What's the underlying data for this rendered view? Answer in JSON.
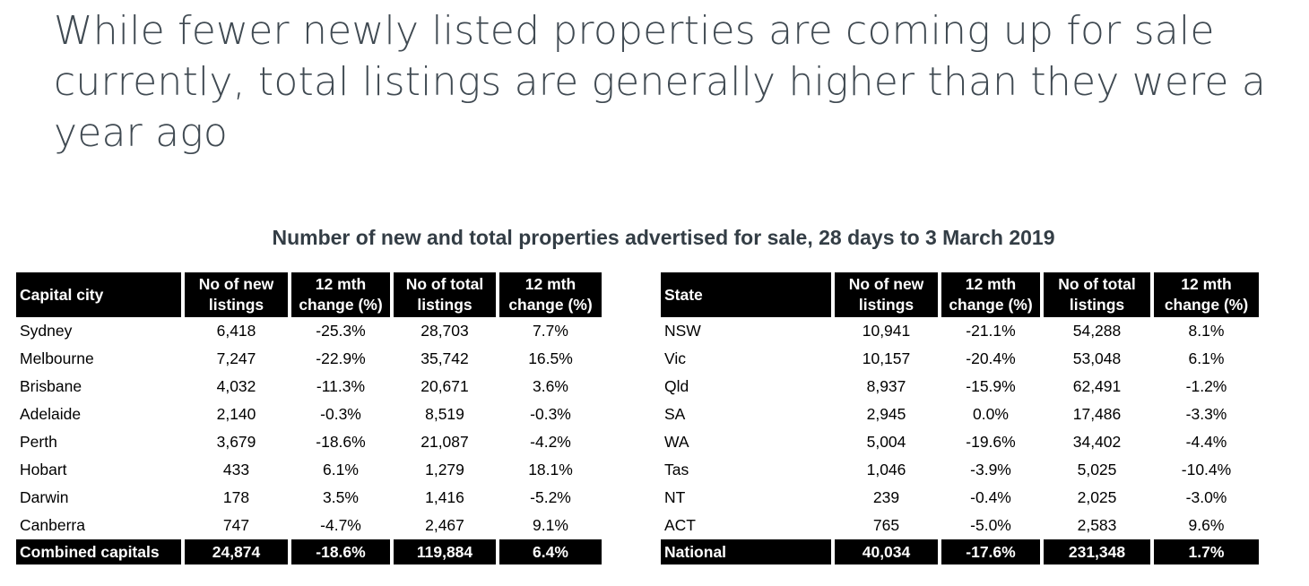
{
  "title": "While fewer newly listed properties are coming up for sale currently, total listings are generally higher than they were a year ago",
  "subtitle": "Number of new and total properties advertised for sale, 28 days to 3 March 2019",
  "columns_shared": {
    "new_l1": "No of new",
    "new_l2": "listings",
    "chg_l1": "12 mth",
    "chg_l2": "change (%)",
    "tot_l1": "No of total",
    "tot_l2": "listings"
  },
  "capitals": {
    "header": "Capital city",
    "rows": [
      [
        "Sydney",
        "6,418",
        "-25.3%",
        "28,703",
        "7.7%"
      ],
      [
        "Melbourne",
        "7,247",
        "-22.9%",
        "35,742",
        "16.5%"
      ],
      [
        "Brisbane",
        "4,032",
        "-11.3%",
        "20,671",
        "3.6%"
      ],
      [
        "Adelaide",
        "2,140",
        "-0.3%",
        "8,519",
        "-0.3%"
      ],
      [
        "Perth",
        "3,679",
        "-18.6%",
        "21,087",
        "-4.2%"
      ],
      [
        "Hobart",
        "433",
        "6.1%",
        "1,279",
        "18.1%"
      ],
      [
        "Darwin",
        "178",
        "3.5%",
        "1,416",
        "-5.2%"
      ],
      [
        "Canberra",
        "747",
        "-4.7%",
        "2,467",
        "9.1%"
      ]
    ],
    "total": [
      "Combined capitals",
      "24,874",
      "-18.6%",
      "119,884",
      "6.4%"
    ]
  },
  "states": {
    "header": "State",
    "rows": [
      [
        "NSW",
        "10,941",
        "-21.1%",
        "54,288",
        "8.1%"
      ],
      [
        "Vic",
        "10,157",
        "-20.4%",
        "53,048",
        "6.1%"
      ],
      [
        "Qld",
        "8,937",
        "-15.9%",
        "62,491",
        "-1.2%"
      ],
      [
        "SA",
        "2,945",
        "0.0%",
        "17,486",
        "-3.3%"
      ],
      [
        "WA",
        "5,004",
        "-19.6%",
        "34,402",
        "-4.4%"
      ],
      [
        "Tas",
        "1,046",
        "-3.9%",
        "5,025",
        "-10.4%"
      ],
      [
        "NT",
        "239",
        "-0.4%",
        "2,025",
        "-3.0%"
      ],
      [
        "ACT",
        "765",
        "-5.0%",
        "2,583",
        "9.6%"
      ]
    ],
    "total": [
      "National",
      "40,034",
      "-17.6%",
      "231,348",
      "1.7%"
    ]
  }
}
